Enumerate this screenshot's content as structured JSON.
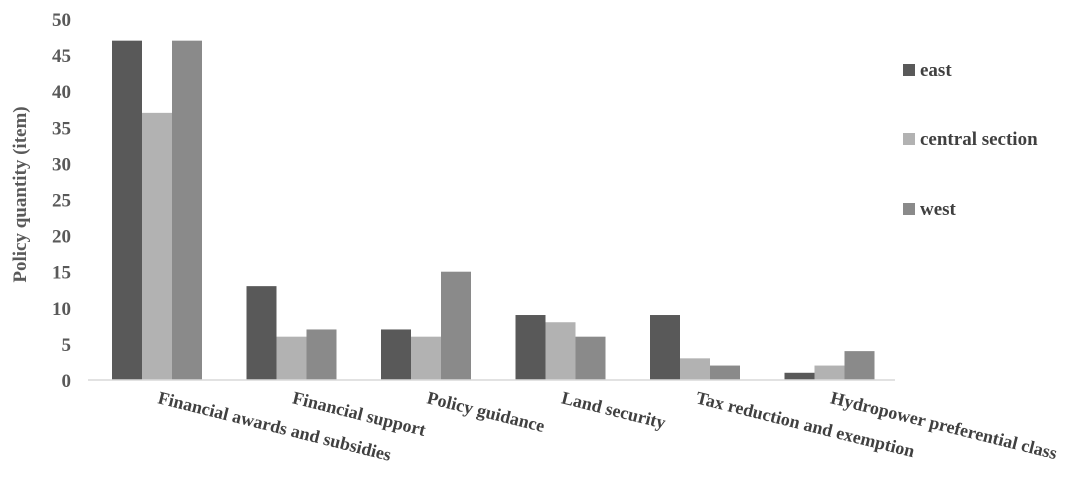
{
  "chart_data": {
    "type": "bar",
    "title": "",
    "xlabel": "",
    "ylabel": "Policy quantity (item)",
    "ylim": [
      0,
      50
    ],
    "yticks": [
      0,
      5,
      10,
      15,
      20,
      25,
      30,
      35,
      40,
      45,
      50
    ],
    "grid": false,
    "legend_position": "right",
    "categories": [
      "Financial awards and subsidies",
      "Financial support",
      "Policy guidance",
      "Land security",
      "Tax reduction and exemption",
      "Hydropower preferential class"
    ],
    "series": [
      {
        "name": "east",
        "color": "#595959",
        "values": [
          47,
          13,
          7,
          9,
          9,
          1
        ]
      },
      {
        "name": "central section",
        "color": "#b2b2b2",
        "values": [
          37,
          6,
          6,
          8,
          3,
          2
        ]
      },
      {
        "name": "west",
        "color": "#8a8a8a",
        "values": [
          47,
          7,
          15,
          6,
          2,
          4
        ]
      }
    ]
  }
}
